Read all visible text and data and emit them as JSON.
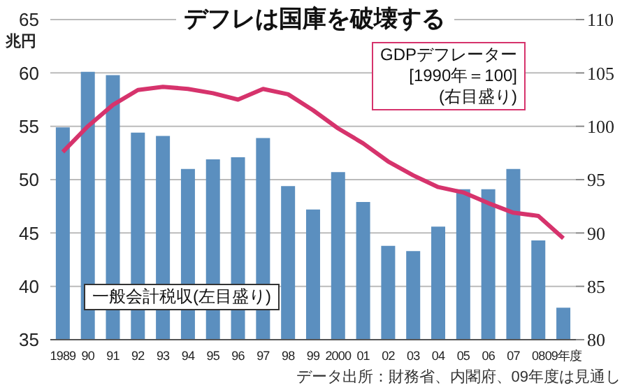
{
  "chart_data": {
    "type": "bar",
    "title": "デフレは国庫を破壊する",
    "ylabel": "兆円",
    "annotations": [
      "データ出所：財務省、内閣府、09年度は見通し"
    ],
    "categories": [
      "1989",
      "90",
      "91",
      "92",
      "93",
      "94",
      "95",
      "96",
      "97",
      "98",
      "99",
      "2000",
      "01",
      "02",
      "03",
      "04",
      "05",
      "06",
      "07",
      "08",
      "09年度"
    ],
    "series": [
      {
        "name": "一般会計税収(左目盛り)",
        "color": "#5b8fbf",
        "values": [
          54.9,
          60.1,
          59.8,
          54.4,
          54.1,
          51.0,
          51.9,
          52.1,
          53.9,
          49.4,
          47.2,
          50.7,
          47.9,
          43.8,
          43.3,
          45.6,
          49.1,
          49.1,
          51.0,
          44.3,
          38.0
        ]
      },
      {
        "name": "GDPデフレーター\n[1990年＝100]\n(右目盛り)",
        "type": "line",
        "axis": "y2",
        "color": "#d6336c",
        "values": [
          97.6,
          100.0,
          102.0,
          103.4,
          103.7,
          103.5,
          103.1,
          102.5,
          103.5,
          103.0,
          101.5,
          99.8,
          98.4,
          96.7,
          95.4,
          94.3,
          93.8,
          92.8,
          91.9,
          91.6,
          89.5
        ]
      }
    ],
    "ylim": [
      35,
      65
    ],
    "yticks": [
      35,
      40,
      45,
      50,
      55,
      60,
      65
    ],
    "y2lim": [
      80,
      110
    ],
    "y2ticks": [
      80,
      85,
      90,
      95,
      100,
      105,
      110
    ],
    "grid": "y",
    "marker": "none"
  }
}
